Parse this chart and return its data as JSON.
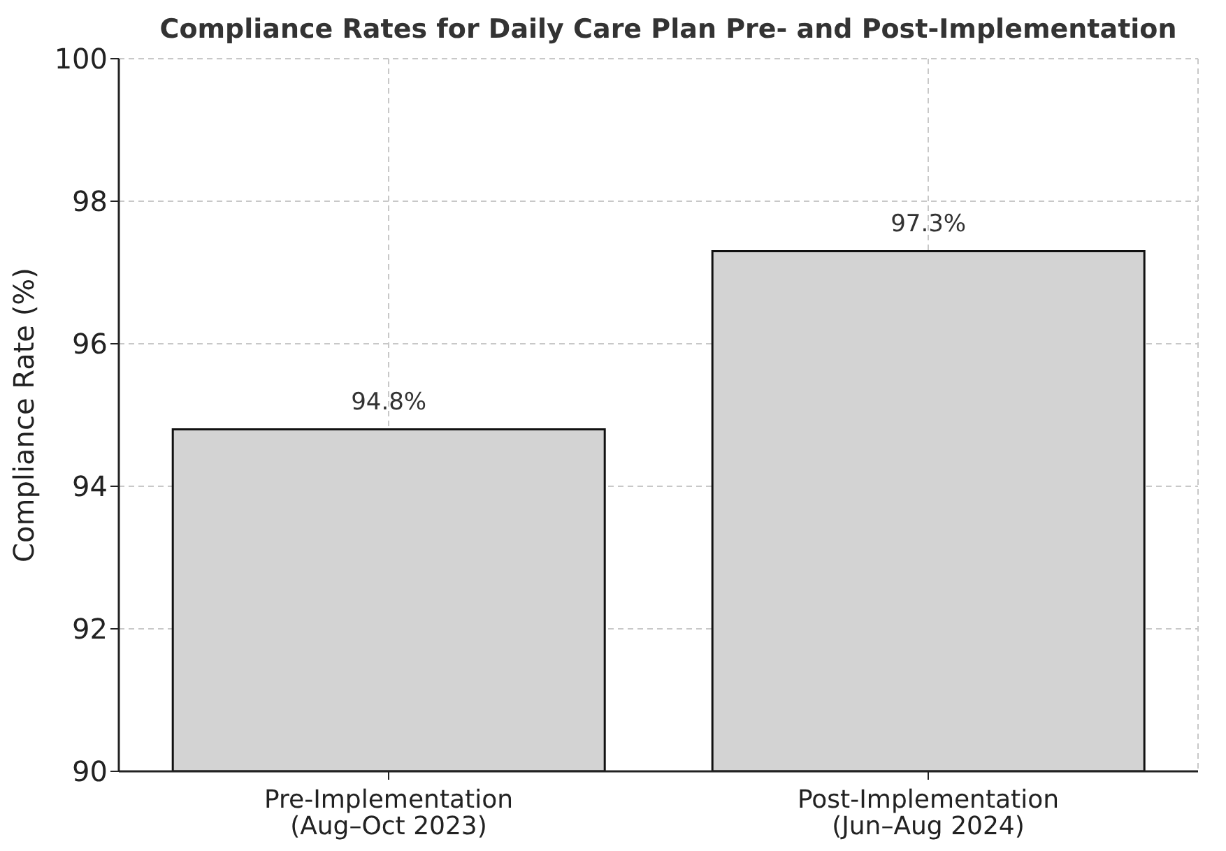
{
  "chart_data": {
    "type": "bar",
    "title": "Compliance Rates for Daily Care Plan Pre- and Post-Implementation",
    "ylabel": "Compliance Rate (%)",
    "categories": [
      "Pre-Implementation\n(Aug–Oct 2023)",
      "Post-Implementation\n(Jun–Aug 2024)"
    ],
    "values": [
      94.8,
      97.3
    ],
    "value_labels": [
      "94.8%",
      "97.3%"
    ],
    "color": "#d3d3d3",
    "ylim": [
      90,
      100
    ],
    "yticks": [
      90,
      92,
      94,
      96,
      98,
      100
    ],
    "grid": true
  }
}
